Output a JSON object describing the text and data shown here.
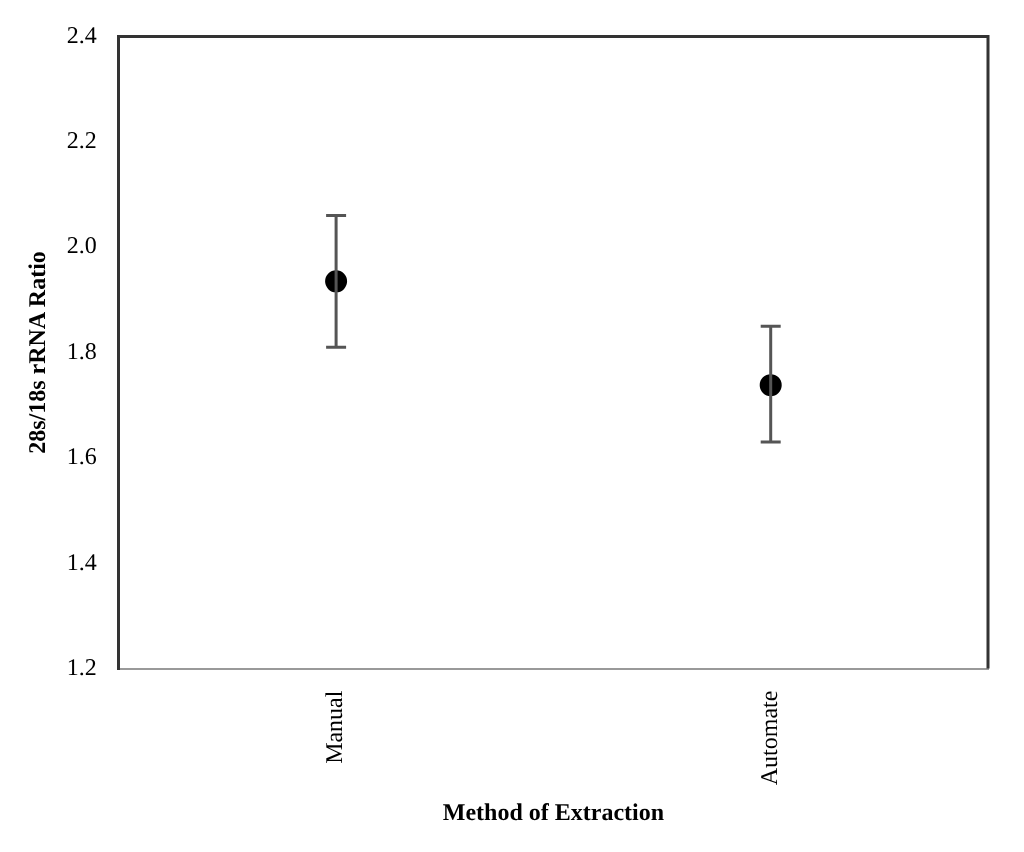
{
  "chart_data": {
    "type": "scatter",
    "categories": [
      "Manual",
      "Automate"
    ],
    "values": [
      1.935,
      1.738
    ],
    "errors": [
      [
        1.81,
        2.06
      ],
      [
        1.63,
        1.85
      ]
    ],
    "color": "#000000",
    "marker": "circle",
    "xlabel": "Method of Extraction",
    "ylabel": "28s/18s rRNA Ratio",
    "ylim": [
      1.2,
      2.4
    ],
    "yticks": [
      {
        "value": 1.2,
        "label": "1.2"
      },
      {
        "value": 1.4,
        "label": "1.4"
      },
      {
        "value": 1.6,
        "label": "1.6"
      },
      {
        "value": 1.8,
        "label": "1.8"
      },
      {
        "value": 2.0,
        "label": "2.0"
      },
      {
        "value": 2.2,
        "label": "2.2"
      },
      {
        "value": 2.4,
        "label": "2.4"
      }
    ],
    "grid": false,
    "legend": false
  }
}
